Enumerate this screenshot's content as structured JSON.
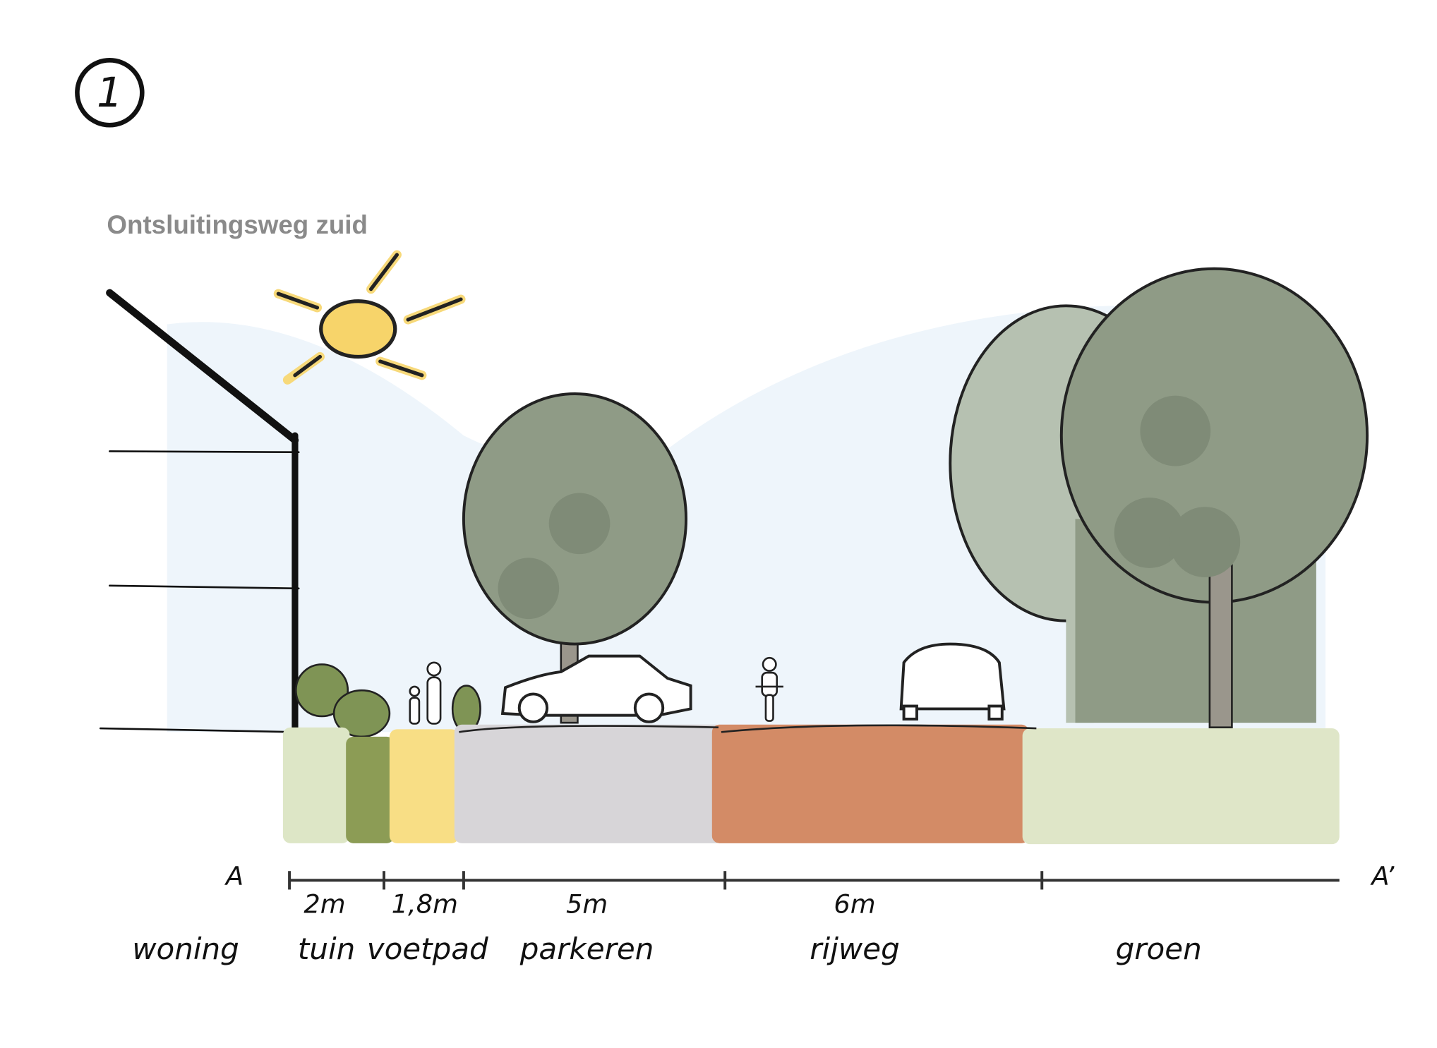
{
  "marker": "1",
  "title": "Ontsluitingsweg zuid",
  "section": {
    "start": "A",
    "end": "A’",
    "dimensions": [
      "2m",
      "1,8m",
      "5m",
      "6m"
    ],
    "zones": [
      "woning",
      "tuin",
      "voetpad",
      "parkeren",
      "rijweg",
      "groen"
    ]
  }
}
